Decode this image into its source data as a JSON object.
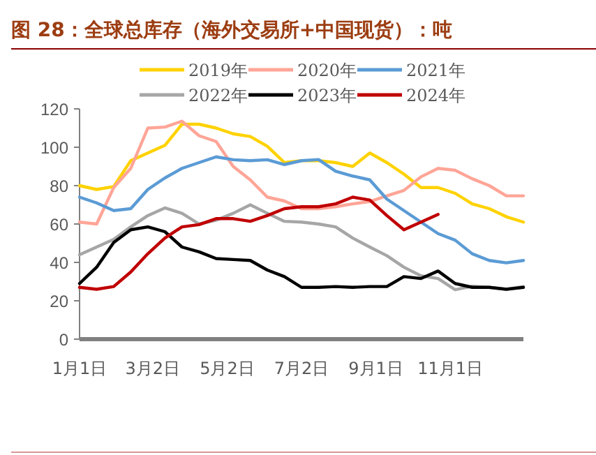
{
  "chart_data": {
    "type": "line",
    "title": "图 28：全球总库存（海外交易所+中国现货）：吨",
    "x": [
      "--01-01",
      "--01-15",
      "--01-29",
      "--02-12",
      "--02-26",
      "--03-12",
      "--03-26",
      "--04-09",
      "--04-23",
      "--05-07",
      "--05-21",
      "--06-04",
      "--06-18",
      "--07-02",
      "--07-16",
      "--07-30",
      "--08-13",
      "--08-27",
      "--09-10",
      "--09-24",
      "--10-08",
      "--10-22",
      "--11-05",
      "--11-19",
      "--12-03",
      "--12-17",
      "--12-31"
    ],
    "xlim": [
      "--01-01",
      "--12-31"
    ],
    "xticks": [
      {
        "value": "--01-01",
        "label": "1月1日"
      },
      {
        "value": "--03-02",
        "label": "3月2日"
      },
      {
        "value": "--05-02",
        "label": "5月2日"
      },
      {
        "value": "--07-02",
        "label": "7月2日"
      },
      {
        "value": "--09-01",
        "label": "9月1日"
      },
      {
        "value": "--11-01",
        "label": "11月1日"
      }
    ],
    "ylim": [
      0,
      120
    ],
    "yticks": [
      0,
      20,
      40,
      60,
      80,
      100,
      120
    ],
    "legend": "top",
    "grid": false,
    "marker": "none",
    "line_style": "solid",
    "series": [
      {
        "name": "2019年",
        "color": "#ffd200",
        "values": [
          80,
          78,
          79.5,
          93,
          97,
          101,
          112,
          112,
          110,
          107,
          105.6,
          100.5,
          92,
          93,
          93,
          92,
          90,
          97,
          92,
          86,
          79,
          79,
          76,
          70.5,
          68,
          63.8,
          61
        ]
      },
      {
        "name": "2020年",
        "color": "#ffa597",
        "values": [
          61,
          60,
          79,
          89,
          110,
          110.5,
          113.6,
          106,
          103,
          90,
          83,
          74,
          72,
          68,
          68,
          69,
          70.5,
          71.7,
          74.7,
          77.5,
          84.6,
          89,
          88,
          83.6,
          80,
          74.7,
          74.7
        ]
      },
      {
        "name": "2021年",
        "color": "#5b9bd5",
        "values": [
          74,
          71,
          67,
          68,
          78,
          84,
          89,
          92,
          95,
          93.5,
          93,
          93.5,
          91,
          93,
          93.6,
          87.5,
          85,
          83,
          73,
          67,
          61,
          55,
          51.6,
          44.5,
          41,
          39.8,
          41
        ]
      },
      {
        "name": "2022年",
        "color": "#a6a6a6",
        "values": [
          44,
          48,
          52,
          58.5,
          64.4,
          68.4,
          65.6,
          60,
          62,
          65.6,
          70,
          65.6,
          61.4,
          61,
          60,
          58.5,
          52.7,
          48,
          43.5,
          37.5,
          33,
          31.6,
          25.8,
          27.6,
          27,
          26,
          27.4
        ]
      },
      {
        "name": "2023年",
        "color": "#000000",
        "values": [
          29,
          37.5,
          50.4,
          57,
          58.5,
          56,
          48,
          45.5,
          42,
          41.5,
          41,
          36,
          32.6,
          27,
          27,
          27.4,
          27,
          27.4,
          27.4,
          32.6,
          31.6,
          35.5,
          29,
          27,
          27,
          26,
          27
        ]
      },
      {
        "name": "2024年",
        "color": "#c00000",
        "values": [
          27,
          26,
          27.4,
          35,
          44.5,
          52.7,
          58.5,
          59.7,
          62.8,
          62.8,
          61.4,
          64.4,
          68,
          69,
          69,
          70.5,
          74,
          72.5,
          64.4,
          57,
          61,
          65,
          null,
          null,
          null,
          null,
          null
        ]
      }
    ]
  }
}
